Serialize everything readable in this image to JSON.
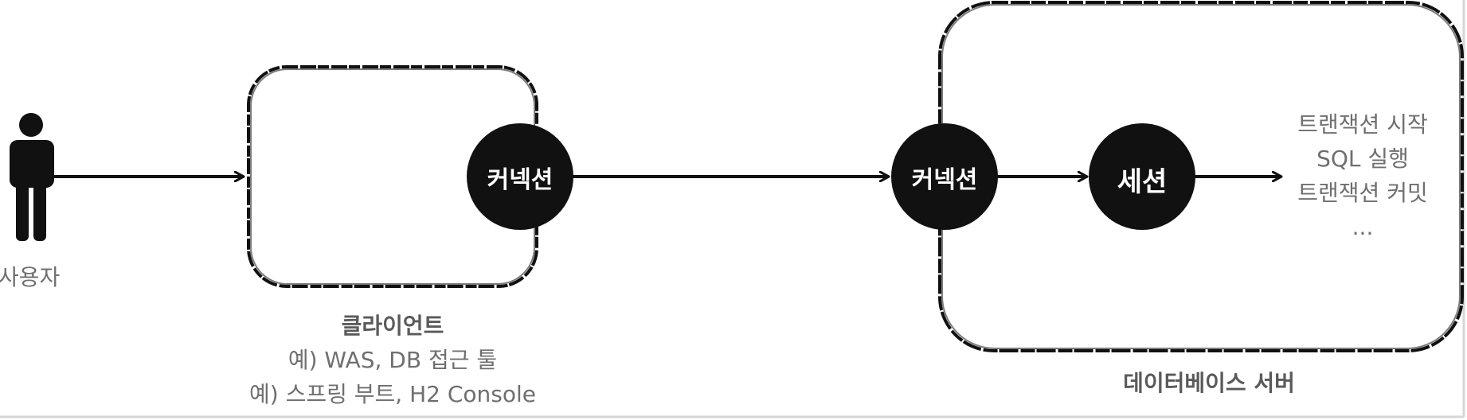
{
  "user": {
    "label": "사용자"
  },
  "client": {
    "connection_label": "커넥션",
    "title": "클라이언트",
    "example_1": "예) WAS, DB 접근 툴",
    "example_2": "예) 스프링 부트, H2 Console"
  },
  "database_server": {
    "connection_label": "커넥션",
    "session_label": "세션",
    "title": "데이터베이스 서버",
    "session_actions": [
      "트랜잭션 시작",
      "SQL 실행",
      "트랜잭션 커밋",
      "..."
    ]
  },
  "colors": {
    "stroke": "#111111",
    "text_gray": "#6f6f6f",
    "frame_border": "#d6d6d6"
  }
}
